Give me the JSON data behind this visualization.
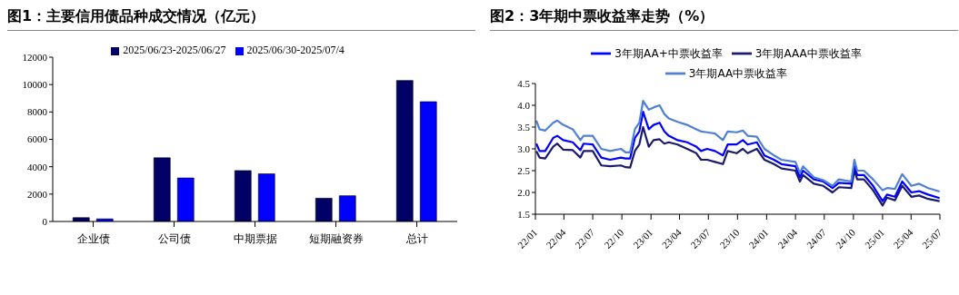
{
  "chart_data": [
    {
      "type": "bar",
      "title": "图1：主要信用债品种成交情况（亿元）",
      "categories": [
        "企业债",
        "公司债",
        "中期票据",
        "短期融资券",
        "总计"
      ],
      "series": [
        {
          "name": "2025/06/23-2025/06/27",
          "color": "#000066",
          "values": [
            280,
            4650,
            3720,
            1700,
            10300
          ]
        },
        {
          "name": "2025/06/30-2025/07/4",
          "color": "#0000ff",
          "values": [
            190,
            3180,
            3480,
            1880,
            8750
          ]
        }
      ],
      "ylim": [
        0,
        12000
      ],
      "yticks": [
        0,
        2000,
        4000,
        6000,
        8000,
        10000,
        12000
      ],
      "grid": false,
      "legend": "top"
    },
    {
      "type": "line",
      "title": "图2：3年期中票收益率走势（%）",
      "x": [
        "2022-01-04",
        "2022-01-14",
        "2022-02-01",
        "2022-02-26",
        "2022-03-11",
        "2022-03-30",
        "2022-04-29",
        "2022-05-23",
        "2022-06-02",
        "2022-07-01",
        "2022-07-28",
        "2022-08-25",
        "2022-09-28",
        "2022-10-13",
        "2022-10-27",
        "2022-11-11",
        "2022-11-25",
        "2022-12-07",
        "2022-12-25",
        "2023-01-09",
        "2023-01-28",
        "2023-02-12",
        "2023-02-26",
        "2023-03-26",
        "2023-04-25",
        "2023-05-24",
        "2023-06-08",
        "2023-06-27",
        "2023-07-22",
        "2023-08-16",
        "2023-08-31",
        "2023-09-28",
        "2023-10-18",
        "2023-11-02",
        "2023-12-01",
        "2023-12-25",
        "2024-01-24",
        "2024-02-17",
        "2024-04-01",
        "2024-04-15",
        "2024-04-25",
        "2024-05-29",
        "2024-06-28",
        "2024-07-27",
        "2024-08-16",
        "2024-09-24",
        "2024-10-04",
        "2024-10-13",
        "2024-11-03",
        "2024-12-02",
        "2025-01-01",
        "2025-01-15",
        "2025-02-09",
        "2025-03-04",
        "2025-04-02",
        "2025-04-26",
        "2025-05-25",
        "2025-06-30"
      ],
      "series": [
        {
          "name": "3年期AAA中票收益率",
          "color": "#1a1a6e",
          "values": [
            2.95,
            2.8,
            2.78,
            3.05,
            3.12,
            2.98,
            2.97,
            2.8,
            2.95,
            2.95,
            2.62,
            2.6,
            2.62,
            2.58,
            2.57,
            2.95,
            3.1,
            3.5,
            3.05,
            3.2,
            3.22,
            3.12,
            3.15,
            3.1,
            3.0,
            2.9,
            2.75,
            2.75,
            2.7,
            2.65,
            2.95,
            2.9,
            3.0,
            2.9,
            3.0,
            2.75,
            2.65,
            2.55,
            2.5,
            2.25,
            2.4,
            2.2,
            2.15,
            2.0,
            2.12,
            2.1,
            2.5,
            2.3,
            2.3,
            2.05,
            1.7,
            1.88,
            1.82,
            2.15,
            1.9,
            1.93,
            1.85,
            1.8
          ]
        },
        {
          "name": "3年期AA+中票收益率",
          "color": "#0000ff",
          "values": [
            3.12,
            2.95,
            2.95,
            3.25,
            3.3,
            3.2,
            3.15,
            2.97,
            3.12,
            3.1,
            2.8,
            2.75,
            2.8,
            2.78,
            2.78,
            3.25,
            3.4,
            3.85,
            3.45,
            3.55,
            3.6,
            3.4,
            3.3,
            3.2,
            3.15,
            3.05,
            2.95,
            3.0,
            2.95,
            2.85,
            3.1,
            3.1,
            3.2,
            3.1,
            3.15,
            2.85,
            2.75,
            2.65,
            2.6,
            2.35,
            2.5,
            2.3,
            2.25,
            2.1,
            2.22,
            2.2,
            2.6,
            2.4,
            2.4,
            2.15,
            1.8,
            1.95,
            1.9,
            2.25,
            2.0,
            2.03,
            1.95,
            1.87
          ]
        },
        {
          "name": "3年期AA中票收益率",
          "color": "#4f81d3",
          "values": [
            3.65,
            3.45,
            3.42,
            3.6,
            3.65,
            3.55,
            3.45,
            3.2,
            3.3,
            3.3,
            3.0,
            2.95,
            3.0,
            2.92,
            2.92,
            3.45,
            3.6,
            4.1,
            3.9,
            3.95,
            4.0,
            3.8,
            3.7,
            3.62,
            3.55,
            3.45,
            3.4,
            3.38,
            3.35,
            3.2,
            3.4,
            3.38,
            3.42,
            3.3,
            3.28,
            3.0,
            2.85,
            2.75,
            2.7,
            2.45,
            2.6,
            2.35,
            2.28,
            2.15,
            2.3,
            2.25,
            2.75,
            2.5,
            2.5,
            2.3,
            2.05,
            2.1,
            2.08,
            2.42,
            2.15,
            2.2,
            2.1,
            2.02
          ]
        }
      ],
      "xlim": [
        "2022-01-01",
        "2025-07-01"
      ],
      "xticks": [
        {
          "value": "2022-01",
          "label": "22/01"
        },
        {
          "value": "2022-04",
          "label": "22/04"
        },
        {
          "value": "2022-07",
          "label": "22/07"
        },
        {
          "value": "2022-10",
          "label": "22/10"
        },
        {
          "value": "2023-01",
          "label": "23/01"
        },
        {
          "value": "2023-04",
          "label": "23/04"
        },
        {
          "value": "2023-07",
          "label": "23/07"
        },
        {
          "value": "2023-10",
          "label": "23/10"
        },
        {
          "value": "2024-01",
          "label": "24/01"
        },
        {
          "value": "2024-04",
          "label": "24/04"
        },
        {
          "value": "2024-07",
          "label": "24/07"
        },
        {
          "value": "2024-10",
          "label": "24/10"
        },
        {
          "value": "2025-01",
          "label": "25/01"
        },
        {
          "value": "2025-04",
          "label": "25/04"
        },
        {
          "value": "2025-07",
          "label": "25/07"
        }
      ],
      "ylim": [
        1.5,
        4.5
      ],
      "yticks": [
        1.5,
        {
          "value": 2,
          "label": "2.0"
        },
        2.5,
        {
          "value": 3,
          "label": "3.0"
        },
        3.5,
        {
          "value": 4,
          "label": "4.0"
        },
        4.5
      ],
      "grid": false,
      "legend": "top",
      "marker": "none",
      "line_style": "solid"
    }
  ]
}
